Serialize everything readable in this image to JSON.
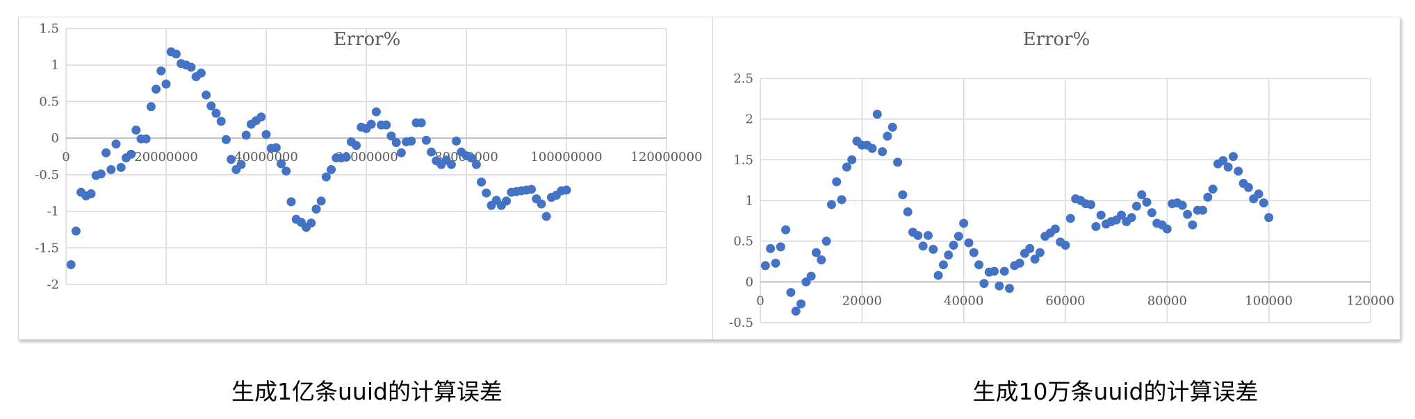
{
  "captions": {
    "left": "生成1亿条uuid的计算误差",
    "right": "生成10万条uuid的计算误差"
  },
  "colors": {
    "marker": "#4472c4",
    "grid": "#d9d9d9",
    "text": "#595959"
  },
  "chart_data": [
    {
      "type": "scatter",
      "title": "Error%",
      "xlabel": "",
      "ylabel": "",
      "xlim": [
        0,
        120000000
      ],
      "ylim": [
        -2,
        1.5
      ],
      "x_ticks": [
        0,
        20000000,
        40000000,
        60000000,
        80000000,
        100000000,
        120000000
      ],
      "x_tick_labels": [
        "0",
        "20000000",
        "40000000",
        "60000000",
        "80000000",
        "100000000",
        "120000000"
      ],
      "y_ticks": [
        1.5,
        1,
        0.5,
        0,
        -0.5,
        -1,
        -1.5,
        -2
      ],
      "y_tick_labels": [
        "1.5",
        "1",
        "0.5",
        "0",
        "-0.5",
        "-1",
        "-1.5",
        "-2"
      ],
      "grid": true,
      "x": [
        1000000,
        2000000,
        3000000,
        4000000,
        5000000,
        6000000,
        7000000,
        8000000,
        9000000,
        10000000,
        11000000,
        12000000,
        13000000,
        14000000,
        15000000,
        16000000,
        17000000,
        18000000,
        19000000,
        20000000,
        21000000,
        22000000,
        23000000,
        24000000,
        25000000,
        26000000,
        27000000,
        28000000,
        29000000,
        30000000,
        31000000,
        32000000,
        33000000,
        34000000,
        35000000,
        36000000,
        37000000,
        38000000,
        39000000,
        40000000,
        41000000,
        42000000,
        43000000,
        44000000,
        45000000,
        46000000,
        47000000,
        48000000,
        49000000,
        50000000,
        51000000,
        52000000,
        53000000,
        54000000,
        55000000,
        56000000,
        57000000,
        58000000,
        59000000,
        60000000,
        61000000,
        62000000,
        63000000,
        64000000,
        65000000,
        66000000,
        67000000,
        68000000,
        69000000,
        70000000,
        71000000,
        72000000,
        73000000,
        74000000,
        75000000,
        76000000,
        77000000,
        78000000,
        79000000,
        80000000,
        81000000,
        82000000,
        83000000,
        84000000,
        85000000,
        86000000,
        87000000,
        88000000,
        89000000,
        90000000,
        91000000,
        92000000,
        93000000,
        94000000,
        95000000,
        96000000,
        97000000,
        98000000,
        99000000,
        100000000
      ],
      "y": [
        -1.73,
        -1.27,
        -0.74,
        -0.79,
        -0.76,
        -0.51,
        -0.49,
        -0.2,
        -0.43,
        -0.08,
        -0.4,
        -0.27,
        -0.22,
        0.11,
        -0.01,
        -0.01,
        0.43,
        0.67,
        0.92,
        0.74,
        1.18,
        1.15,
        1.02,
        1.0,
        0.97,
        0.84,
        0.89,
        0.59,
        0.44,
        0.34,
        0.23,
        -0.02,
        -0.29,
        -0.43,
        -0.36,
        0.04,
        0.19,
        0.24,
        0.29,
        0.05,
        -0.14,
        -0.13,
        -0.35,
        -0.45,
        -0.87,
        -1.11,
        -1.15,
        -1.22,
        -1.16,
        -0.97,
        -0.86,
        -0.53,
        -0.43,
        -0.27,
        -0.27,
        -0.26,
        -0.05,
        -0.1,
        0.15,
        0.13,
        0.19,
        0.36,
        0.18,
        0.18,
        0.03,
        -0.06,
        -0.2,
        -0.05,
        -0.04,
        0.21,
        0.21,
        -0.03,
        -0.19,
        -0.31,
        -0.36,
        -0.3,
        -0.36,
        -0.04,
        -0.19,
        -0.24,
        -0.27,
        -0.36,
        -0.6,
        -0.75,
        -0.92,
        -0.85,
        -0.92,
        -0.86,
        -0.74,
        -0.73,
        -0.72,
        -0.71,
        -0.7,
        -0.83,
        -0.9,
        -1.07,
        -0.81,
        -0.78,
        -0.72,
        -0.71
      ]
    },
    {
      "type": "scatter",
      "title": "Error%",
      "xlabel": "",
      "ylabel": "",
      "xlim": [
        0,
        120000
      ],
      "ylim": [
        -0.5,
        2.5
      ],
      "x_ticks": [
        0,
        20000,
        40000,
        60000,
        80000,
        100000,
        120000
      ],
      "x_tick_labels": [
        "0",
        "20000",
        "40000",
        "60000",
        "80000",
        "100000",
        "120000"
      ],
      "y_ticks": [
        2.5,
        2,
        1.5,
        1,
        0.5,
        0,
        -0.5
      ],
      "y_tick_labels": [
        "2.5",
        "2",
        "1.5",
        "1",
        "0.5",
        "0",
        "-0.5"
      ],
      "grid": true,
      "x": [
        1000,
        2000,
        3000,
        4000,
        5000,
        6000,
        7000,
        8000,
        9000,
        10000,
        11000,
        12000,
        13000,
        14000,
        15000,
        16000,
        17000,
        18000,
        19000,
        20000,
        21000,
        22000,
        23000,
        24000,
        25000,
        26000,
        27000,
        28000,
        29000,
        30000,
        31000,
        32000,
        33000,
        34000,
        35000,
        36000,
        37000,
        38000,
        39000,
        40000,
        41000,
        42000,
        43000,
        44000,
        45000,
        46000,
        47000,
        48000,
        49000,
        50000,
        51000,
        52000,
        53000,
        54000,
        55000,
        56000,
        57000,
        58000,
        59000,
        60000,
        61000,
        62000,
        63000,
        64000,
        65000,
        66000,
        67000,
        68000,
        69000,
        70000,
        71000,
        72000,
        73000,
        74000,
        75000,
        76000,
        77000,
        78000,
        79000,
        80000,
        81000,
        82000,
        83000,
        84000,
        85000,
        86000,
        87000,
        88000,
        89000,
        90000,
        91000,
        92000,
        93000,
        94000,
        95000,
        96000,
        97000,
        98000,
        99000,
        100000
      ],
      "y": [
        0.2,
        0.41,
        0.23,
        0.43,
        0.64,
        -0.13,
        -0.36,
        -0.27,
        0.0,
        0.07,
        0.36,
        0.27,
        0.5,
        0.95,
        1.23,
        1.01,
        1.41,
        1.5,
        1.73,
        1.68,
        1.68,
        1.64,
        2.06,
        1.6,
        1.79,
        1.9,
        1.47,
        1.07,
        0.86,
        0.61,
        0.57,
        0.44,
        0.57,
        0.4,
        0.08,
        0.21,
        0.33,
        0.45,
        0.56,
        0.72,
        0.48,
        0.36,
        0.21,
        -0.02,
        0.12,
        0.13,
        -0.05,
        0.13,
        -0.08,
        0.2,
        0.23,
        0.35,
        0.41,
        0.28,
        0.36,
        0.56,
        0.6,
        0.65,
        0.49,
        0.45,
        0.78,
        1.02,
        1.0,
        0.96,
        0.95,
        0.68,
        0.82,
        0.71,
        0.74,
        0.76,
        0.82,
        0.74,
        0.79,
        0.93,
        1.07,
        0.98,
        0.85,
        0.72,
        0.7,
        0.65,
        0.96,
        0.97,
        0.94,
        0.83,
        0.7,
        0.88,
        0.88,
        1.04,
        1.14,
        1.45,
        1.49,
        1.41,
        1.54,
        1.36,
        1.21,
        1.16,
        1.02,
        1.08,
        0.97,
        0.79
      ]
    }
  ]
}
